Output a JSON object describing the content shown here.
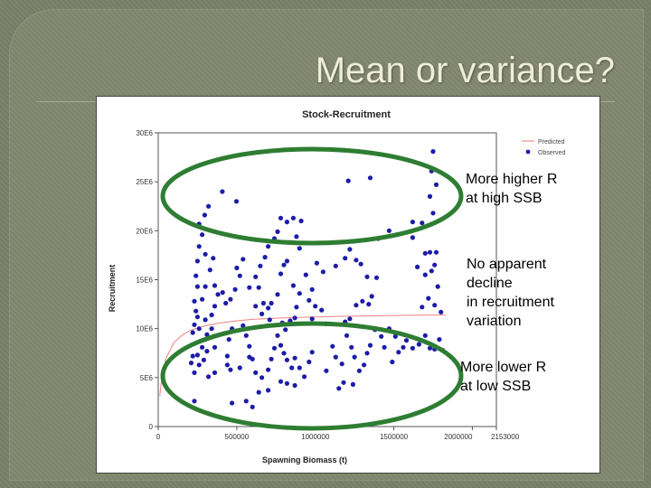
{
  "slide": {
    "title": "Mean or variance?"
  },
  "annotations": [
    "More higher R\nat high SSB",
    "No apparent\ndecline\nin recruitment\nvariation",
    "More lower R\nat low SSB"
  ],
  "colors": {
    "predicted": "#f08080",
    "observed": "#1c1ca8",
    "ellipse": "#2e7d32"
  },
  "chart_data": {
    "type": "scatter",
    "title": "Stock-Recruitment",
    "xlabel": "Spawning Biomass (t)",
    "ylabel": "Recruitment",
    "xlim": [
      0,
      2153000
    ],
    "ylim": [
      0,
      30000000
    ],
    "x_ticks": [
      0,
      500000,
      1000000,
      1500000,
      2000000,
      2153000
    ],
    "x_tick_labels": [
      "0",
      "500000",
      "1000000",
      "1500000",
      "2000000",
      "2153000"
    ],
    "y_ticks": [
      0,
      5000000,
      10000000,
      15000000,
      20000000,
      25000000,
      30000000
    ],
    "y_tick_labels": [
      "0",
      "5E6",
      "10E6",
      "15E6",
      "20E6",
      "25E6",
      "30E6"
    ],
    "legend": {
      "placement": "top-right",
      "entries": [
        "Predicted",
        "Observed"
      ]
    },
    "series": [
      {
        "name": "Predicted",
        "kind": "line",
        "points": [
          [
            10000,
            3100000
          ],
          [
            25000,
            5300000
          ],
          [
            50000,
            7000000
          ],
          [
            100000,
            8600000
          ],
          [
            150000,
            9300000
          ],
          [
            200000,
            9800000
          ],
          [
            300000,
            10300000
          ],
          [
            400000,
            10600000
          ],
          [
            500000,
            10800000
          ],
          [
            600000,
            10950000
          ],
          [
            800000,
            11100000
          ],
          [
            1000000,
            11200000
          ],
          [
            1200000,
            11270000
          ],
          [
            1400000,
            11320000
          ],
          [
            1600000,
            11360000
          ],
          [
            1830000,
            11390000
          ]
        ]
      },
      {
        "name": "Observed",
        "kind": "scatter",
        "points": [
          [
            1210000,
            25100000
          ],
          [
            1350000,
            25400000
          ],
          [
            408000,
            24000000
          ],
          [
            498000,
            23000000
          ],
          [
            320000,
            22500000
          ],
          [
            296000,
            21600000
          ],
          [
            1770000,
            24700000
          ],
          [
            1730000,
            23500000
          ],
          [
            1750000,
            21800000
          ],
          [
            1680000,
            20800000
          ],
          [
            1620000,
            20900000
          ],
          [
            1520000,
            19600000
          ],
          [
            1470000,
            20000000
          ],
          [
            1400000,
            19200000
          ],
          [
            1620000,
            19300000
          ],
          [
            1730000,
            17800000
          ],
          [
            1770000,
            17800000
          ],
          [
            1700000,
            17700000
          ],
          [
            1760000,
            16500000
          ],
          [
            1740000,
            15900000
          ],
          [
            1650000,
            16300000
          ],
          [
            1700000,
            15500000
          ],
          [
            1780000,
            14300000
          ],
          [
            1720000,
            13100000
          ],
          [
            1680000,
            12200000
          ],
          [
            1760000,
            12400000
          ],
          [
            1800000,
            11700000
          ],
          [
            1790000,
            8900000
          ],
          [
            1700000,
            9300000
          ],
          [
            1730000,
            8000000
          ],
          [
            1660000,
            8400000
          ],
          [
            1760000,
            7900000
          ],
          [
            1810000,
            7800000
          ],
          [
            1530000,
            7600000
          ],
          [
            1490000,
            6600000
          ],
          [
            1470000,
            10000000
          ],
          [
            1510000,
            9200000
          ],
          [
            1580000,
            8800000
          ],
          [
            1620000,
            8000000
          ],
          [
            1560000,
            8100000
          ],
          [
            1440000,
            8100000
          ],
          [
            1420000,
            9200000
          ],
          [
            1380000,
            9900000
          ],
          [
            1350000,
            8300000
          ],
          [
            1330000,
            7500000
          ],
          [
            1310000,
            6300000
          ],
          [
            1280000,
            5700000
          ],
          [
            1250000,
            7100000
          ],
          [
            1230000,
            8100000
          ],
          [
            1200000,
            9300000
          ],
          [
            1190000,
            10700000
          ],
          [
            1220000,
            11000000
          ],
          [
            1260000,
            12400000
          ],
          [
            1300000,
            12800000
          ],
          [
            1340000,
            12500000
          ],
          [
            1360000,
            13300000
          ],
          [
            1390000,
            15200000
          ],
          [
            1330000,
            15300000
          ],
          [
            1290000,
            16600000
          ],
          [
            1260000,
            17000000
          ],
          [
            1190000,
            17200000
          ],
          [
            1220000,
            18100000
          ],
          [
            1130000,
            16400000
          ],
          [
            1050000,
            15800000
          ],
          [
            1010000,
            16700000
          ],
          [
            1000000,
            12300000
          ],
          [
            1040000,
            11900000
          ],
          [
            980000,
            11000000
          ],
          [
            1070000,
            10500000
          ],
          [
            1110000,
            8200000
          ],
          [
            1130000,
            7100000
          ],
          [
            1070000,
            5700000
          ],
          [
            1170000,
            6400000
          ],
          [
            1180000,
            4500000
          ],
          [
            1150000,
            3900000
          ],
          [
            1240000,
            4300000
          ],
          [
            980000,
            7600000
          ],
          [
            960000,
            6600000
          ],
          [
            930000,
            5100000
          ],
          [
            900000,
            6000000
          ],
          [
            850000,
            6000000
          ],
          [
            870000,
            7000000
          ],
          [
            820000,
            6800000
          ],
          [
            800000,
            7500000
          ],
          [
            780000,
            8300000
          ],
          [
            760000,
            9300000
          ],
          [
            740000,
            8000000
          ],
          [
            720000,
            6900000
          ],
          [
            700000,
            5800000
          ],
          [
            660000,
            5000000
          ],
          [
            620000,
            5500000
          ],
          [
            600000,
            6900000
          ],
          [
            580000,
            7100000
          ],
          [
            580000,
            8200000
          ],
          [
            560000,
            9300000
          ],
          [
            540000,
            10300000
          ],
          [
            520000,
            6000000
          ],
          [
            460000,
            5800000
          ],
          [
            440000,
            6300000
          ],
          [
            440000,
            7200000
          ],
          [
            450000,
            8900000
          ],
          [
            470000,
            10000000
          ],
          [
            430000,
            12600000
          ],
          [
            460000,
            13000000
          ],
          [
            490000,
            14000000
          ],
          [
            500000,
            16200000
          ],
          [
            540000,
            17100000
          ],
          [
            520000,
            15400000
          ],
          [
            580000,
            14200000
          ],
          [
            620000,
            12300000
          ],
          [
            660000,
            11500000
          ],
          [
            700000,
            12100000
          ],
          [
            720000,
            12600000
          ],
          [
            760000,
            13500000
          ],
          [
            780000,
            15600000
          ],
          [
            800000,
            16500000
          ],
          [
            820000,
            16900000
          ],
          [
            860000,
            14400000
          ],
          [
            900000,
            13600000
          ],
          [
            880000,
            12200000
          ],
          [
            870000,
            11100000
          ],
          [
            840000,
            10800000
          ],
          [
            810000,
            9900000
          ],
          [
            790000,
            10600000
          ],
          [
            710000,
            10900000
          ],
          [
            670000,
            12600000
          ],
          [
            640000,
            14200000
          ],
          [
            620000,
            15300000
          ],
          [
            650000,
            16400000
          ],
          [
            680000,
            17300000
          ],
          [
            700000,
            18400000
          ],
          [
            740000,
            19200000
          ],
          [
            760000,
            19900000
          ],
          [
            780000,
            21300000
          ],
          [
            820000,
            20900000
          ],
          [
            860000,
            21300000
          ],
          [
            910000,
            21000000
          ],
          [
            880000,
            19400000
          ],
          [
            840000,
            18800000
          ],
          [
            900000,
            18200000
          ],
          [
            940000,
            15500000
          ],
          [
            980000,
            14000000
          ],
          [
            960000,
            12900000
          ],
          [
            280000,
            13000000
          ],
          [
            300000,
            14300000
          ],
          [
            330000,
            16000000
          ],
          [
            350000,
            17200000
          ],
          [
            300000,
            17600000
          ],
          [
            280000,
            19600000
          ],
          [
            260000,
            20700000
          ],
          [
            260000,
            18400000
          ],
          [
            250000,
            16900000
          ],
          [
            240000,
            15400000
          ],
          [
            250000,
            14300000
          ],
          [
            230000,
            12800000
          ],
          [
            240000,
            11800000
          ],
          [
            250000,
            11200000
          ],
          [
            230000,
            10400000
          ],
          [
            220000,
            9600000
          ],
          [
            260000,
            10000000
          ],
          [
            300000,
            10900000
          ],
          [
            340000,
            11400000
          ],
          [
            360000,
            12300000
          ],
          [
            380000,
            13500000
          ],
          [
            410000,
            13700000
          ],
          [
            360000,
            14400000
          ],
          [
            340000,
            10000000
          ],
          [
            310000,
            9400000
          ],
          [
            300000,
            8900000
          ],
          [
            280000,
            8100000
          ],
          [
            250000,
            7300000
          ],
          [
            220000,
            7200000
          ],
          [
            210000,
            6500000
          ],
          [
            230000,
            5500000
          ],
          [
            260000,
            6300000
          ],
          [
            290000,
            6800000
          ],
          [
            310000,
            7700000
          ],
          [
            360000,
            8100000
          ],
          [
            360000,
            5500000
          ],
          [
            320000,
            5100000
          ],
          [
            230000,
            2600000
          ],
          [
            470000,
            2400000
          ],
          [
            560000,
            2600000
          ],
          [
            600000,
            2000000
          ],
          [
            640000,
            3500000
          ],
          [
            700000,
            3700000
          ],
          [
            780000,
            4600000
          ],
          [
            820000,
            4400000
          ],
          [
            870000,
            4200000
          ],
          [
            1750000,
            28100000
          ],
          [
            1740000,
            26100000
          ]
        ]
      }
    ]
  }
}
